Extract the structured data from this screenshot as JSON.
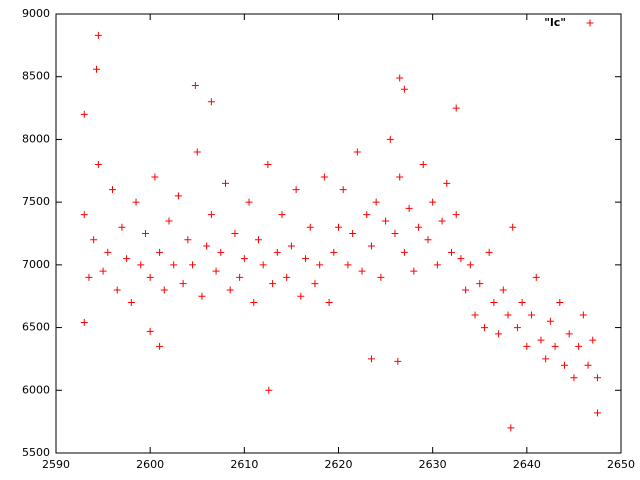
{
  "chart_data": {
    "type": "scatter",
    "xlim": [
      2590,
      2650
    ],
    "ylim": [
      5500,
      9000
    ],
    "xticks": [
      2590,
      2600,
      2610,
      2620,
      2630,
      2640,
      2650
    ],
    "yticks": [
      5500,
      6000,
      6500,
      7000,
      7500,
      8000,
      8500,
      9000
    ],
    "grid": false,
    "legend": "top-right",
    "series": [
      {
        "name": "\"lc\"",
        "color": "#ff0000",
        "x": [
          2593,
          2593.5,
          2594,
          2594.5,
          2595,
          2595.5,
          2596,
          2596.5,
          2597,
          2597.5,
          2598,
          2598.5,
          2599,
          2599.5,
          2600,
          2600.5,
          2601,
          2601.5,
          2602,
          2602.5,
          2603,
          2603.5,
          2604,
          2604.5,
          2605,
          2605.5,
          2606,
          2606.5,
          2607,
          2607.5,
          2608,
          2608.5,
          2609,
          2609.5,
          2610,
          2610.5,
          2611,
          2611.5,
          2612,
          2612.5,
          2613,
          2613.5,
          2614,
          2614.5,
          2615,
          2615.5,
          2616,
          2616.5,
          2617,
          2617.5,
          2618,
          2618.5,
          2619,
          2619.5,
          2620,
          2620.5,
          2621,
          2621.5,
          2622,
          2622.5,
          2623,
          2623.5,
          2624,
          2624.5,
          2625,
          2625.5,
          2626,
          2626.5,
          2627,
          2627.5,
          2628,
          2628.5,
          2629,
          2629.5,
          2630,
          2630.5,
          2631,
          2631.5,
          2632,
          2632.5,
          2633,
          2633.5,
          2634,
          2634.5,
          2635,
          2635.5,
          2636,
          2636.5,
          2637,
          2637.5,
          2638,
          2638.5,
          2639,
          2639.5,
          2640,
          2640.5,
          2641,
          2641.5,
          2642,
          2642.5,
          2643,
          2643.5,
          2644,
          2644.5,
          2645,
          2645.5,
          2646,
          2646.5,
          2647,
          2647.5,
          2594.5,
          2594.3,
          2604.8,
          2606.5,
          2612.6,
          2638.3,
          2647.5,
          2626.5,
          2601,
          2600,
          2627,
          2632.5,
          2623.5,
          2626.3,
          2593,
          2593
        ],
        "values": [
          7400,
          6900,
          7200,
          7800,
          6950,
          7100,
          7600,
          6800,
          7300,
          7050,
          6700,
          7500,
          7000,
          7250,
          6900,
          7700,
          7100,
          6800,
          7350,
          7000,
          7550,
          6850,
          7200,
          7000,
          7900,
          6750,
          7150,
          7400,
          6950,
          7100,
          7650,
          6800,
          7250,
          6900,
          7050,
          7500,
          6700,
          7200,
          7000,
          7800,
          6850,
          7100,
          7400,
          6900,
          7150,
          7600,
          6750,
          7050,
          7300,
          6850,
          7000,
          7700,
          6700,
          7100,
          7300,
          7600,
          7000,
          7250,
          7900,
          6950,
          7400,
          7150,
          7500,
          6900,
          7350,
          8000,
          7250,
          7700,
          7100,
          7450,
          6950,
          7300,
          7800,
          7200,
          7500,
          7000,
          7350,
          7650,
          7100,
          7400,
          7050,
          6800,
          7000,
          6600,
          6850,
          6500,
          7100,
          6700,
          6450,
          6800,
          6600,
          7300,
          6500,
          6700,
          6350,
          6600,
          6900,
          6400,
          6250,
          6550,
          6350,
          6700,
          6200,
          6450,
          6100,
          6350,
          6600,
          6200,
          6400,
          6100,
          8830,
          8560,
          8430,
          8300,
          6000,
          5700,
          5820,
          8490,
          6350,
          6470,
          8400,
          8250,
          6250,
          6230,
          8200,
          6540
        ]
      }
    ]
  }
}
